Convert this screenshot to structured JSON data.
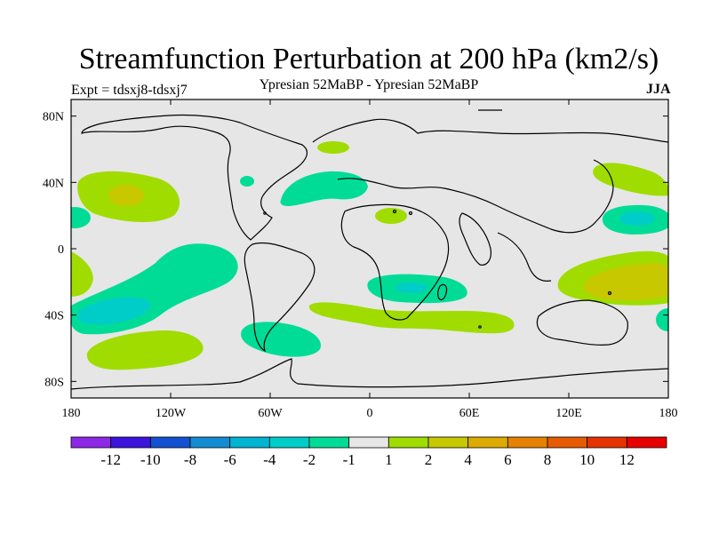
{
  "title": "Streamfunction Perturbation at 200 hPa (km2/s)",
  "subtitle": "Ypresian  52MaBP - Ypresian  52MaBP",
  "experiment": "Expt = tdsxj8-tdsxj7",
  "season": "JJA",
  "map": {
    "background_color": "#e6e6e6",
    "lat_labels": [
      "80N",
      "40N",
      "0",
      "40S",
      "80S"
    ],
    "lon_labels": [
      "180",
      "120W",
      "60W",
      "0",
      "60E",
      "120E",
      "180"
    ]
  },
  "colorbar": {
    "colors": [
      "#8c28e6",
      "#3c14dc",
      "#1450d2",
      "#148cd2",
      "#00b4d2",
      "#00cdc8",
      "#00dc96",
      "#e6e6e6",
      "#a0dc00",
      "#c8c800",
      "#dcaa00",
      "#e68200",
      "#e65a00",
      "#e63200",
      "#e60000"
    ],
    "labels": [
      "-12",
      "-10",
      "-8",
      "-6",
      "-4",
      "-2",
      "-1",
      "1",
      "2",
      "4",
      "6",
      "8",
      "10",
      "12"
    ]
  },
  "chart_data": {
    "type": "contour-map",
    "variable": "Streamfunction Perturbation at 200 hPa",
    "units": "km2/s",
    "levels": [
      -12,
      -10,
      -8,
      -6,
      -4,
      -2,
      -1,
      1,
      2,
      4,
      6,
      8,
      10,
      12
    ],
    "features": [
      {
        "lon": -153,
        "lat": 35,
        "value": 2,
        "peak": 4
      },
      {
        "lon": -175,
        "lat": 18,
        "value": -2
      },
      {
        "lon": -175,
        "lat": -12,
        "value": 2
      },
      {
        "lon": -160,
        "lat": -38,
        "value": -2,
        "peak": -4
      },
      {
        "lon": -107,
        "lat": -15,
        "value": -2
      },
      {
        "lon": -145,
        "lat": -60,
        "value": 2
      },
      {
        "lon": -62,
        "lat": -52,
        "value": -2
      },
      {
        "lon": -40,
        "lat": 38,
        "value": -2
      },
      {
        "lon": -28,
        "lat": 63,
        "value": 2
      },
      {
        "lon": 20,
        "lat": 20,
        "value": 2
      },
      {
        "lon": 42,
        "lat": -23,
        "value": -2,
        "peak": -4
      },
      {
        "lon": 35,
        "lat": -42,
        "value": 2
      },
      {
        "lon": 160,
        "lat": 40,
        "value": 2
      },
      {
        "lon": 163,
        "lat": 18,
        "value": -2,
        "peak": -4
      },
      {
        "lon": 155,
        "lat": -20,
        "value": 2,
        "peak": 4
      },
      {
        "lon": 178,
        "lat": -42,
        "value": -2
      }
    ]
  }
}
